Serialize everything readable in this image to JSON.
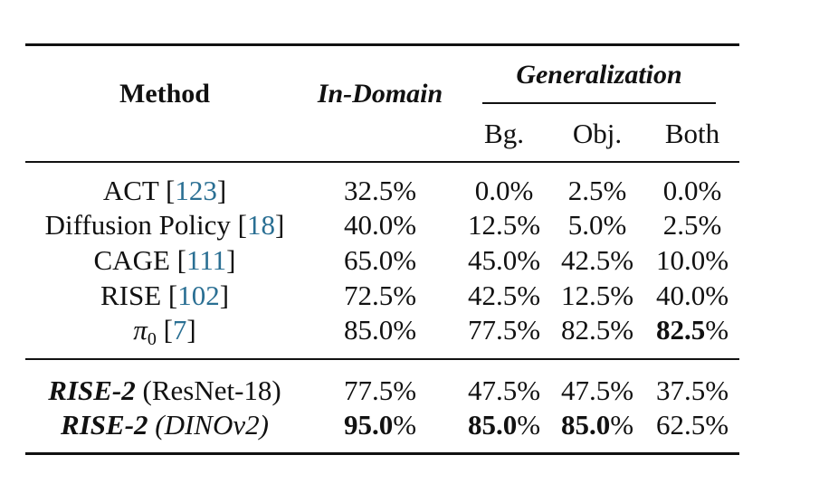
{
  "header": {
    "method": "Method",
    "in_domain": "In-Domain",
    "generalization": "Generalization",
    "sub": [
      "Bg.",
      "Obj.",
      "Both"
    ]
  },
  "rows": [
    {
      "pre": "ACT",
      "pre_style": "normal",
      "mid": "",
      "cite": "123",
      "cells": [
        "32.5%",
        "0.0%",
        "2.5%",
        "0.0%"
      ],
      "bold": [
        false,
        false,
        false,
        false
      ]
    },
    {
      "pre": "Diffusion Policy",
      "pre_style": "normal",
      "mid": "",
      "cite": "18",
      "cells": [
        "40.0%",
        "12.5%",
        "5.0%",
        "2.5%"
      ],
      "bold": [
        false,
        false,
        false,
        false
      ]
    },
    {
      "pre": "CAGE",
      "pre_style": "normal",
      "mid": "",
      "cite": "111",
      "cells": [
        "65.0%",
        "45.0%",
        "42.5%",
        "10.0%"
      ],
      "bold": [
        false,
        false,
        false,
        false
      ]
    },
    {
      "pre": "RISE",
      "pre_style": "normal",
      "mid": "",
      "cite": "102",
      "cells": [
        "72.5%",
        "42.5%",
        "12.5%",
        "40.0%"
      ],
      "bold": [
        false,
        false,
        false,
        false
      ]
    },
    {
      "pre": "π",
      "pre_style": "pi",
      "sub": "0",
      "mid": "",
      "cite": "7",
      "cells": [
        "85.0%",
        "77.5%",
        "82.5%",
        "82.5%"
      ],
      "bold": [
        false,
        false,
        false,
        true
      ]
    },
    {
      "pre": "RISE-2",
      "pre_style": "bold-italic",
      "mid": "(ResNet-18)",
      "mid_style": "normal",
      "cite": "",
      "cells": [
        "77.5%",
        "47.5%",
        "47.5%",
        "37.5%"
      ],
      "bold": [
        false,
        false,
        false,
        false
      ]
    },
    {
      "pre": "RISE-2",
      "pre_style": "bold-italic",
      "mid": "(DINOv2)",
      "mid_style": "italic",
      "cite": "",
      "cells": [
        "95.0%",
        "85.0%",
        "85.0%",
        "62.5%"
      ],
      "bold": [
        true,
        true,
        true,
        false
      ]
    }
  ]
}
